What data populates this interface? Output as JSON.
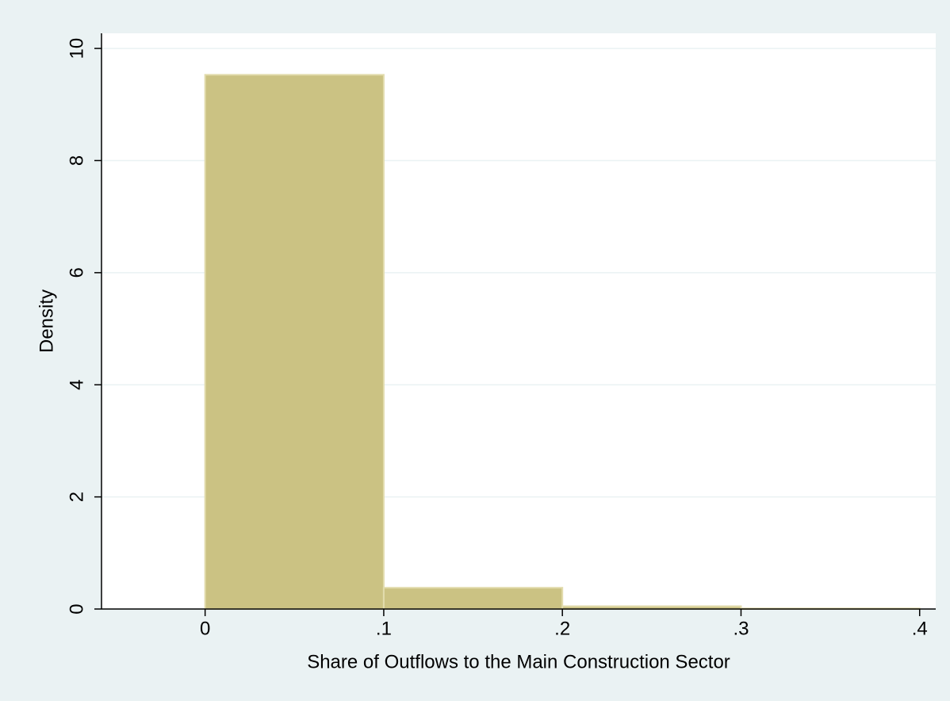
{
  "chart_data": {
    "type": "histogram",
    "xlabel": "Share of Outflows to the Main Construction Sector",
    "ylabel": "Density",
    "bins": [
      0,
      0.1,
      0.2,
      0.3,
      0.4
    ],
    "values": [
      9.53,
      0.38,
      0.05,
      0.01
    ],
    "color": "#cbc283",
    "xlim": [
      -0.058,
      0.409
    ],
    "ylim": [
      0,
      10.27
    ],
    "xticks": [
      0,
      {
        "value": 0.1,
        "label": ".1"
      },
      {
        "value": 0.2,
        "label": ".2"
      },
      {
        "value": 0.3,
        "label": ".3"
      },
      {
        "value": 0.4,
        "label": ".4"
      }
    ],
    "yticks": [
      0,
      2,
      4,
      6,
      8,
      10
    ],
    "grid": true
  }
}
